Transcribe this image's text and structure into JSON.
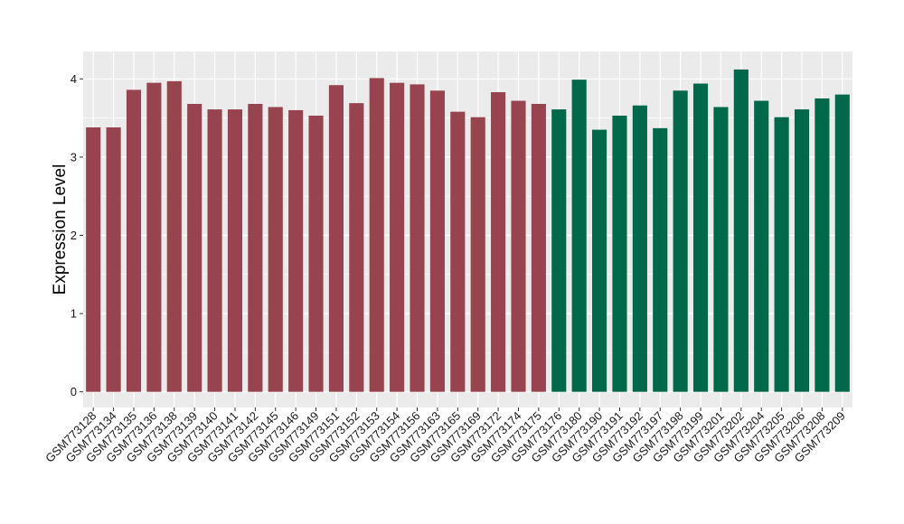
{
  "chart_data": {
    "type": "bar",
    "ylabel": "Expression Level",
    "xlabel": "",
    "ylim": [
      -0.2,
      4.35
    ],
    "yticks": [
      0,
      1,
      2,
      3,
      4
    ],
    "grid": true,
    "panel_background": "#ebebeb",
    "grid_color": "#ffffff",
    "categories": [
      "GSM773128",
      "GSM773134",
      "GSM773135",
      "GSM773136",
      "GSM773138",
      "GSM773139",
      "GSM773140",
      "GSM773141",
      "GSM773142",
      "GSM773145",
      "GSM773146",
      "GSM773149",
      "GSM773151",
      "GSM773152",
      "GSM773153",
      "GSM773154",
      "GSM773156",
      "GSM773163",
      "GSM773165",
      "GSM773169",
      "GSM773172",
      "GSM773174",
      "GSM773175",
      "GSM773176",
      "GSM773180",
      "GSM773190",
      "GSM773191",
      "GSM773192",
      "GSM773197",
      "GSM773198",
      "GSM773199",
      "GSM773201",
      "GSM773202",
      "GSM773204",
      "GSM773205",
      "GSM773206",
      "GSM773208",
      "GSM773209"
    ],
    "values": [
      3.38,
      3.38,
      3.86,
      3.95,
      3.97,
      3.68,
      3.61,
      3.61,
      3.68,
      3.64,
      3.6,
      3.53,
      3.92,
      3.69,
      4.01,
      3.95,
      3.93,
      3.85,
      3.58,
      3.51,
      3.83,
      3.72,
      3.68,
      3.61,
      3.99,
      3.35,
      3.53,
      3.66,
      3.37,
      3.85,
      3.94,
      3.64,
      4.12,
      3.72,
      3.51,
      3.61,
      3.75,
      3.8
    ],
    "bar_colors": [
      "#984450",
      "#984450",
      "#984450",
      "#984450",
      "#984450",
      "#984450",
      "#984450",
      "#984450",
      "#984450",
      "#984450",
      "#984450",
      "#984450",
      "#984450",
      "#984450",
      "#984450",
      "#984450",
      "#984450",
      "#984450",
      "#984450",
      "#984450",
      "#984450",
      "#984450",
      "#984450",
      "#016849",
      "#016849",
      "#016849",
      "#016849",
      "#016849",
      "#016849",
      "#016849",
      "#016849",
      "#016849",
      "#016849",
      "#016849",
      "#016849",
      "#016849",
      "#016849",
      "#016849"
    ]
  }
}
